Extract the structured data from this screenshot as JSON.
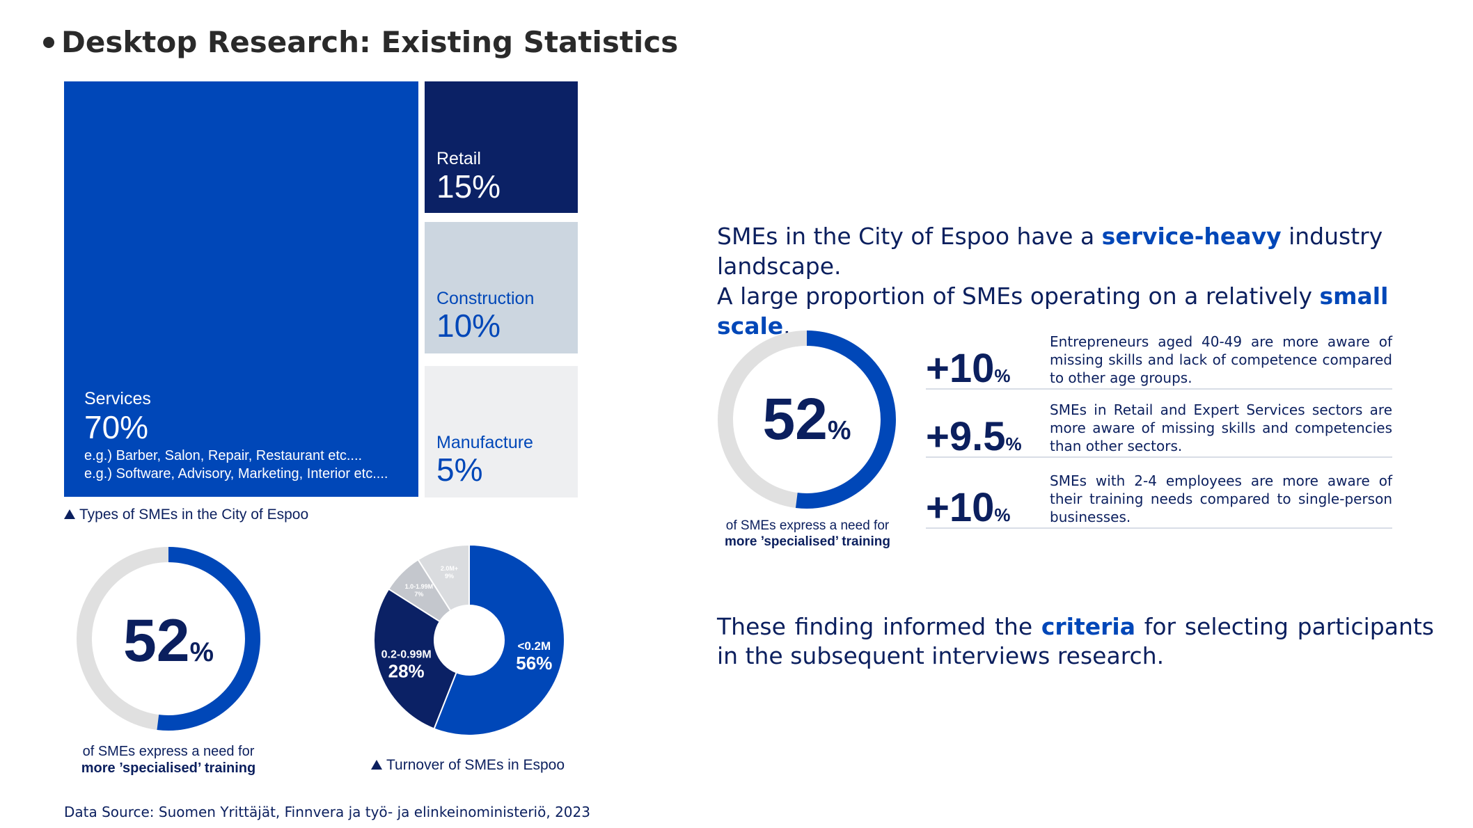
{
  "title": "Desktop Research: Existing Statistics",
  "treemap": {
    "services": {
      "label": "Services",
      "value": "70%",
      "example1": "e.g.) Barber, Salon, Repair, Restaurant etc....",
      "example2": "e.g.) Software, Advisory, Marketing, Interior etc...."
    },
    "retail": {
      "label": "Retail",
      "value": "15%"
    },
    "construction": {
      "label": "Construction",
      "value": "10%"
    },
    "manufacture": {
      "label": "Manufacture",
      "value": "5%"
    },
    "caption": "Types of SMEs in the City of Espoo"
  },
  "donut_left": {
    "number": "52",
    "unit": "%",
    "line1": "of SMEs express a need for",
    "line2": "more ’specialised’ training",
    "fraction": 0.52
  },
  "pie": {
    "caption": "Turnover of  SMEs in Espoo",
    "slices": [
      {
        "label": "<0.2M",
        "value": "56%"
      },
      {
        "label": "0.2-0.99M",
        "value": "28%"
      },
      {
        "label": "1.0-1.99M",
        "value": "7%"
      },
      {
        "label": "2.0M+",
        "value": "9%"
      }
    ]
  },
  "source": "Data Source: Suomen Yrittäjät, Finnvera ja työ- ja elinkeinoministeriö, 2023",
  "headline": {
    "l1a": "SMEs in the City of Espoo have a ",
    "l1b": "service-heavy",
    "l1c": " industry landscape.",
    "l2a": "A large proportion of SMEs operating on a relatively ",
    "l2b": "small scale",
    "l2c": "."
  },
  "donut_right": {
    "number": "52",
    "unit": "%",
    "line1": "of SMEs express a need for",
    "line2": "more ’specialised’ training",
    "fraction": 0.52
  },
  "stats": [
    {
      "value": "+10",
      "unit": "%",
      "text": "Entrepreneurs aged 40-49 are more aware of missing skills and lack of competence compared to other age groups."
    },
    {
      "value": "+9.5",
      "unit": "%",
      "text": "SMEs in Retail and Expert Services sectors are more aware of missing skills and competencies than other sectors."
    },
    {
      "value": "+10",
      "unit": "%",
      "text": "SMEs with 2-4 employees are more aware of their training needs compared to single-person businesses."
    }
  ],
  "conclusion": {
    "a": "These finding informed the ",
    "b": "criteria",
    "c": " for selecting participants in the subsequent interviews research."
  },
  "colors": {
    "primary": "#0047b8",
    "navy": "#0b2165",
    "grey_light": "#ccd6e0",
    "grey_bg": "#eeeff1",
    "track": "#e0e0e0"
  },
  "chart_data": [
    {
      "type": "treemap",
      "title": "Types of SMEs in the City of Espoo",
      "categories": [
        "Services",
        "Retail",
        "Construction",
        "Manufacture"
      ],
      "values": [
        70,
        15,
        10,
        5
      ]
    },
    {
      "type": "pie",
      "title": "Turnover of  SMEs in Espoo",
      "categories": [
        "<0.2M",
        "0.2-0.99M",
        "1.0-1.99M",
        "2.0M+"
      ],
      "values": [
        56,
        28,
        7,
        9
      ]
    },
    {
      "type": "donut",
      "categories": [
        "need for more specialised training"
      ],
      "values": [
        52
      ]
    }
  ]
}
